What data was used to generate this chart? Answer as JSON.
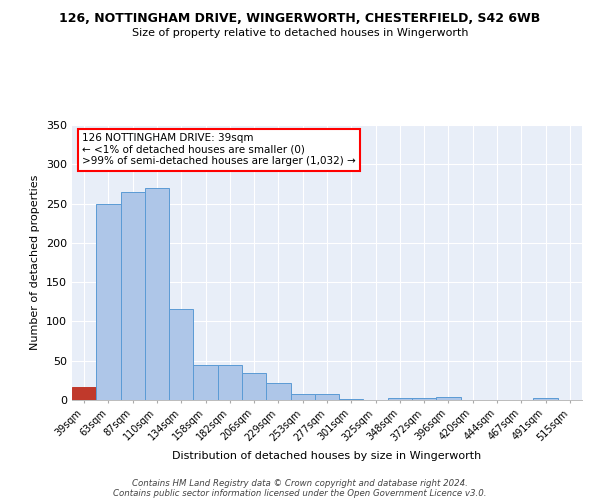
{
  "title": "126, NOTTINGHAM DRIVE, WINGERWORTH, CHESTERFIELD, S42 6WB",
  "subtitle": "Size of property relative to detached houses in Wingerworth",
  "xlabel": "Distribution of detached houses by size in Wingerworth",
  "ylabel": "Number of detached properties",
  "bar_color": "#aec6e8",
  "bar_edge_color": "#5b9bd5",
  "highlight_bar_color": "#c0392b",
  "highlight_bar_edge_color": "#c0392b",
  "bins": [
    "39sqm",
    "63sqm",
    "87sqm",
    "110sqm",
    "134sqm",
    "158sqm",
    "182sqm",
    "206sqm",
    "229sqm",
    "253sqm",
    "277sqm",
    "301sqm",
    "325sqm",
    "348sqm",
    "372sqm",
    "396sqm",
    "420sqm",
    "444sqm",
    "467sqm",
    "491sqm",
    "515sqm"
  ],
  "values": [
    17,
    250,
    265,
    270,
    116,
    45,
    44,
    35,
    22,
    8,
    8,
    1,
    0,
    3,
    2,
    4,
    0,
    0,
    0,
    2,
    0
  ],
  "highlight_index": 0,
  "ylim": [
    0,
    350
  ],
  "yticks": [
    0,
    50,
    100,
    150,
    200,
    250,
    300,
    350
  ],
  "annotation_title": "126 NOTTINGHAM DRIVE: 39sqm",
  "annotation_line1": "← <1% of detached houses are smaller (0)",
  "annotation_line2": ">99% of semi-detached houses are larger (1,032) →",
  "footer_line1": "Contains HM Land Registry data © Crown copyright and database right 2024.",
  "footer_line2": "Contains public sector information licensed under the Open Government Licence v3.0.",
  "background_color": "#e8eef8",
  "fig_background_color": "#ffffff"
}
